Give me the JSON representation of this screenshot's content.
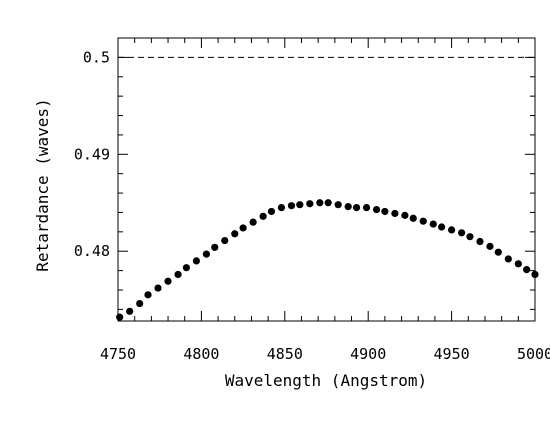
{
  "chart_data": {
    "type": "scatter",
    "title": "",
    "xlabel": "Wavelength (Angstrom)",
    "ylabel": "Retardance (waves)",
    "xlim": [
      4750,
      5000
    ],
    "ylim": [
      0.4728,
      0.502
    ],
    "x_ticks_major": [
      4750,
      4800,
      4850,
      4900,
      4950,
      5000
    ],
    "x_tick_labels": [
      "4750",
      "4800",
      "4850",
      "4900",
      "4950",
      "5000"
    ],
    "y_ticks_major": [
      0.48,
      0.49,
      0.5
    ],
    "y_tick_labels": [
      "0.48",
      "0.49",
      "0.5"
    ],
    "reference_line": {
      "y": 0.5,
      "style": "dashed"
    },
    "grid": false,
    "series": [
      {
        "marker": "filled-circle",
        "color": "#000000",
        "x": [
          4751,
          4757,
          4763,
          4768,
          4774,
          4780,
          4786,
          4791,
          4797,
          4803,
          4808,
          4814,
          4820,
          4825,
          4831,
          4837,
          4842,
          4848,
          4854,
          4859,
          4865,
          4871,
          4876,
          4882,
          4888,
          4893,
          4899,
          4905,
          4910,
          4916,
          4922,
          4927,
          4933,
          4939,
          4944,
          4950,
          4956,
          4961,
          4967,
          4973,
          4978,
          4984,
          4990,
          4995,
          5000
        ],
        "y": [
          0.4732,
          0.4738,
          0.4746,
          0.4755,
          0.4762,
          0.4769,
          0.4776,
          0.4783,
          0.479,
          0.4797,
          0.4804,
          0.4811,
          0.4818,
          0.4824,
          0.483,
          0.4836,
          0.4841,
          0.4845,
          0.4847,
          0.4848,
          0.4849,
          0.485,
          0.485,
          0.4848,
          0.4846,
          0.4845,
          0.4845,
          0.4843,
          0.4841,
          0.4839,
          0.4837,
          0.4834,
          0.4831,
          0.4828,
          0.4825,
          0.4822,
          0.4819,
          0.4815,
          0.481,
          0.4805,
          0.4799,
          0.4792,
          0.4787,
          0.4781,
          0.4776
        ]
      }
    ]
  }
}
